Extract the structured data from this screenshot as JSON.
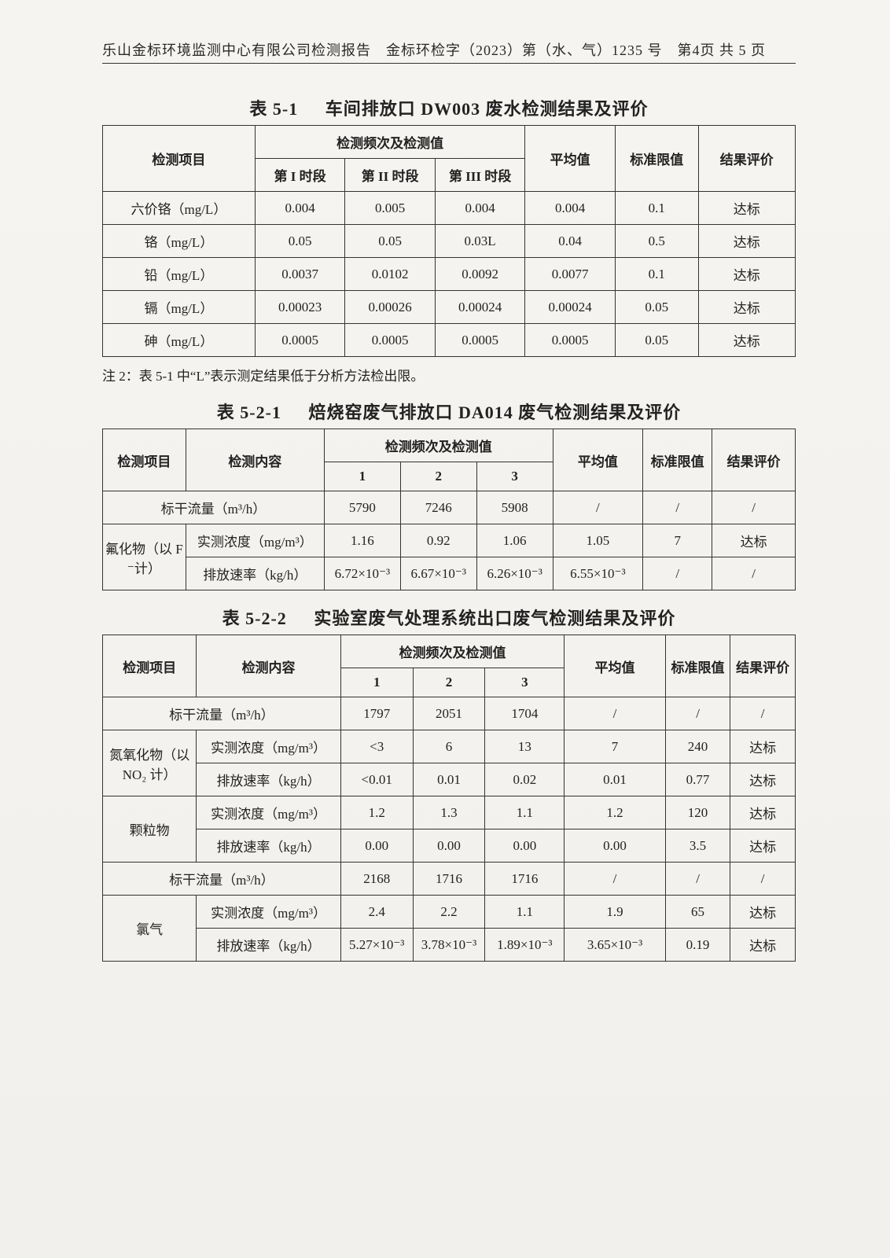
{
  "header": "乐山金标环境监测中心有限公司检测报告　金标环检字（2023）第（水、气）1235 号　第4页 共 5 页",
  "table51": {
    "caption_num": "表 5-1",
    "caption_text": "车间排放口 DW003 废水检测结果及评价",
    "head_item": "检测项目",
    "head_freq": "检测频次及检测值",
    "head_p1": "第 I 时段",
    "head_p2": "第 II 时段",
    "head_p3": "第 III 时段",
    "head_avg": "平均值",
    "head_limit": "标准限值",
    "head_eval": "结果评价",
    "rows": [
      {
        "item": "六价铬（mg/L）",
        "v1": "0.004",
        "v2": "0.005",
        "v3": "0.004",
        "avg": "0.004",
        "lim": "0.1",
        "eval": "达标"
      },
      {
        "item": "铬（mg/L）",
        "v1": "0.05",
        "v2": "0.05",
        "v3": "0.03L",
        "avg": "0.04",
        "lim": "0.5",
        "eval": "达标"
      },
      {
        "item": "铅（mg/L）",
        "v1": "0.0037",
        "v2": "0.0102",
        "v3": "0.0092",
        "avg": "0.0077",
        "lim": "0.1",
        "eval": "达标"
      },
      {
        "item": "镉（mg/L）",
        "v1": "0.00023",
        "v2": "0.00026",
        "v3": "0.00024",
        "avg": "0.00024",
        "lim": "0.05",
        "eval": "达标"
      },
      {
        "item": "砷（mg/L）",
        "v1": "0.0005",
        "v2": "0.0005",
        "v3": "0.0005",
        "avg": "0.0005",
        "lim": "0.05",
        "eval": "达标"
      }
    ]
  },
  "note2": "注 2：表 5-1 中“L”表示测定结果低于分析方法检出限。",
  "table521": {
    "caption_num": "表 5-2-1",
    "caption_text": "焙烧窑废气排放口 DA014 废气检测结果及评价",
    "head_item": "检测项目",
    "head_content": "检测内容",
    "head_freq": "检测频次及检测值",
    "head_c1": "1",
    "head_c2": "2",
    "head_c3": "3",
    "head_avg": "平均值",
    "head_limit": "标准限值",
    "head_eval": "结果评价",
    "flow_label": "标干流量（m³/h）",
    "flow": {
      "v1": "5790",
      "v2": "7246",
      "v3": "5908",
      "avg": "/",
      "lim": "/",
      "eval": "/"
    },
    "item_name": "氟化物（以 F⁻计）",
    "conc_label": "实测浓度（mg/m³）",
    "conc": {
      "v1": "1.16",
      "v2": "0.92",
      "v3": "1.06",
      "avg": "1.05",
      "lim": "7",
      "eval": "达标"
    },
    "rate_label": "排放速率（kg/h）",
    "rate": {
      "v1": "6.72×10⁻³",
      "v2": "6.67×10⁻³",
      "v3": "6.26×10⁻³",
      "avg": "6.55×10⁻³",
      "lim": "/",
      "eval": "/"
    }
  },
  "table522": {
    "caption_num": "表 5-2-2",
    "caption_text": "实验室废气处理系统出口废气检测结果及评价",
    "head_item": "检测项目",
    "head_content": "检测内容",
    "head_freq": "检测频次及检测值",
    "head_c1": "1",
    "head_c2": "2",
    "head_c3": "3",
    "head_avg": "平均值",
    "head_limit": "标准限值",
    "head_eval": "结果评价",
    "flow1_label": "标干流量（m³/h）",
    "flow1": {
      "v1": "1797",
      "v2": "2051",
      "v3": "1704",
      "avg": "/",
      "lim": "/",
      "eval": "/"
    },
    "nox_name": "氮氧化物（以 NO₂ 计）",
    "nox_conc_label": "实测浓度（mg/m³）",
    "nox_conc": {
      "v1": "<3",
      "v2": "6",
      "v3": "13",
      "avg": "7",
      "lim": "240",
      "eval": "达标"
    },
    "nox_rate_label": "排放速率（kg/h）",
    "nox_rate": {
      "v1": "<0.01",
      "v2": "0.01",
      "v3": "0.02",
      "avg": "0.01",
      "lim": "0.77",
      "eval": "达标"
    },
    "pm_name": "颗粒物",
    "pm_conc_label": "实测浓度（mg/m³）",
    "pm_conc": {
      "v1": "1.2",
      "v2": "1.3",
      "v3": "1.1",
      "avg": "1.2",
      "lim": "120",
      "eval": "达标"
    },
    "pm_rate_label": "排放速率（kg/h）",
    "pm_rate": {
      "v1": "0.00",
      "v2": "0.00",
      "v3": "0.00",
      "avg": "0.00",
      "lim": "3.5",
      "eval": "达标"
    },
    "flow2_label": "标干流量（m³/h）",
    "flow2": {
      "v1": "2168",
      "v2": "1716",
      "v3": "1716",
      "avg": "/",
      "lim": "/",
      "eval": "/"
    },
    "cl_name": "氯气",
    "cl_conc_label": "实测浓度（mg/m³）",
    "cl_conc": {
      "v1": "2.4",
      "v2": "2.2",
      "v3": "1.1",
      "avg": "1.9",
      "lim": "65",
      "eval": "达标"
    },
    "cl_rate_label": "排放速率（kg/h）",
    "cl_rate": {
      "v1": "5.27×10⁻³",
      "v2": "3.78×10⁻³",
      "v3": "1.89×10⁻³",
      "avg": "3.65×10⁻³",
      "lim": "0.19",
      "eval": "达标"
    }
  }
}
